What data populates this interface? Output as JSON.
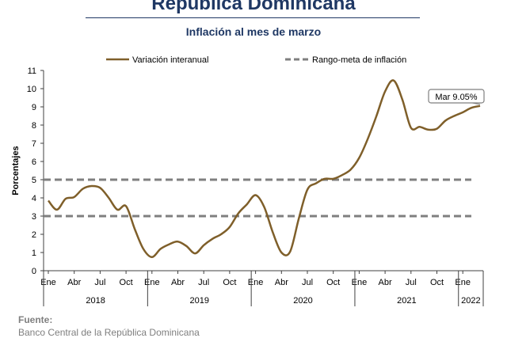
{
  "header": {
    "title": "República Dominicana",
    "subtitle": "Inflación al mes de marzo"
  },
  "footer": {
    "source_label": "Fuente:",
    "source_text": "Banco Central de la República Dominicana"
  },
  "colors": {
    "title": "#1f3864",
    "series": "#7f5f2a",
    "target": "#7f7f7f"
  },
  "chart_data": {
    "type": "line",
    "ylabel": "Porcentajes",
    "ylim": [
      0,
      11
    ],
    "yticks": [
      "0",
      "1",
      "2",
      "3",
      "4",
      "5",
      "6",
      "7",
      "8",
      "9",
      "10",
      "11"
    ],
    "grid": false,
    "legend_position": "top",
    "x_month_labels": [
      "Ene",
      "Abr",
      "Jul",
      "Oct",
      "Ene",
      "Abr",
      "Jul",
      "Oct",
      "Ene",
      "Abr",
      "Jul",
      "Oct",
      "Ene",
      "Abr",
      "Jul",
      "Oct",
      "Ene"
    ],
    "x_year_labels": [
      "2018",
      "2019",
      "2020",
      "2021",
      "2022"
    ],
    "series": [
      {
        "name": "Variación interanual",
        "style": "solid",
        "x": [
          "2018-01",
          "2018-02",
          "2018-03",
          "2018-04",
          "2018-05",
          "2018-06",
          "2018-07",
          "2018-08",
          "2018-09",
          "2018-10",
          "2018-11",
          "2018-12",
          "2019-01",
          "2019-02",
          "2019-03",
          "2019-04",
          "2019-05",
          "2019-06",
          "2019-07",
          "2019-08",
          "2019-09",
          "2019-10",
          "2019-11",
          "2019-12",
          "2020-01",
          "2020-02",
          "2020-03",
          "2020-04",
          "2020-05",
          "2020-06",
          "2020-07",
          "2020-08",
          "2020-09",
          "2020-10",
          "2020-11",
          "2020-12",
          "2021-01",
          "2021-02",
          "2021-03",
          "2021-04",
          "2021-05",
          "2021-06",
          "2021-07",
          "2021-08",
          "2021-09",
          "2021-10",
          "2021-11",
          "2021-12",
          "2022-01",
          "2022-02",
          "2022-03"
        ],
        "values": [
          3.85,
          3.35,
          3.95,
          4.05,
          4.5,
          4.65,
          4.55,
          4.0,
          3.35,
          3.55,
          2.3,
          1.2,
          0.75,
          1.2,
          1.45,
          1.6,
          1.35,
          0.95,
          1.4,
          1.75,
          2.0,
          2.4,
          3.15,
          3.65,
          4.15,
          3.5,
          2.1,
          1.0,
          1.05,
          2.85,
          4.45,
          4.8,
          5.05,
          5.05,
          5.25,
          5.55,
          6.2,
          7.25,
          8.5,
          9.85,
          10.45,
          9.4,
          7.85,
          7.9,
          7.75,
          7.8,
          8.25,
          8.5,
          8.7,
          8.95,
          9.05
        ]
      },
      {
        "name": "Rango-meta de inflación",
        "style": "dashed",
        "values": [
          3,
          5
        ]
      }
    ],
    "annotation": "Mar 9.05%"
  }
}
